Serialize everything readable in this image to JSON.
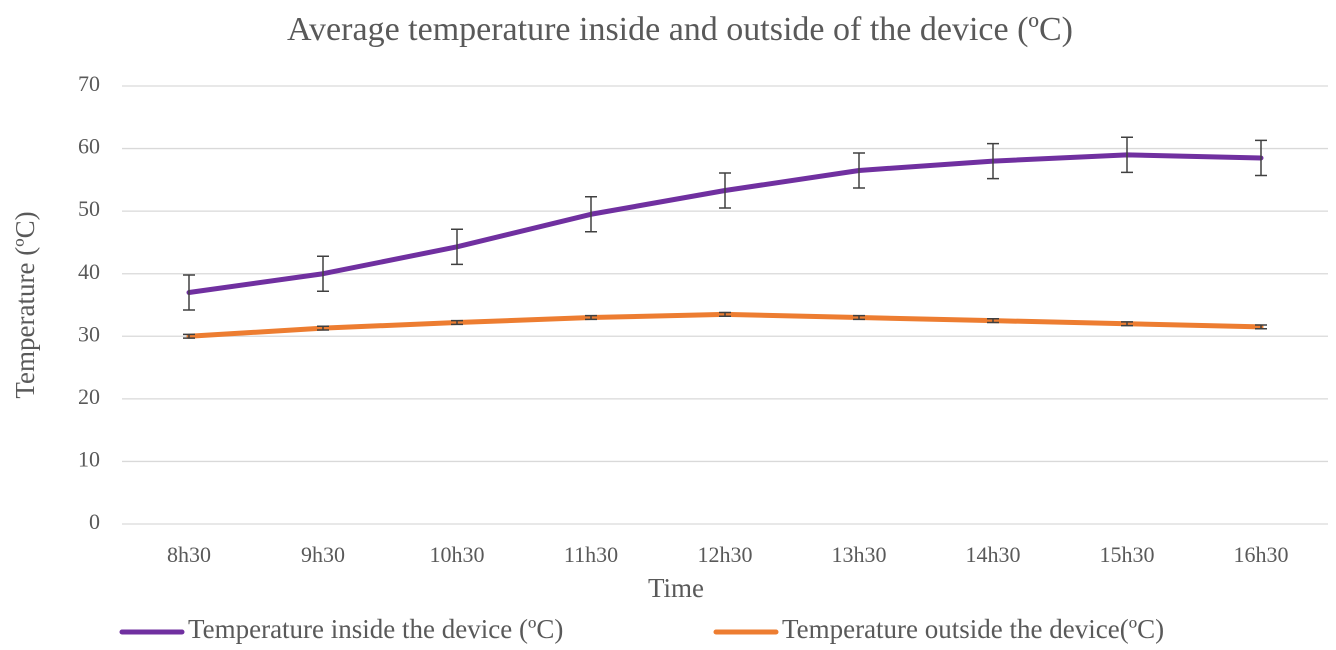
{
  "chart_data": {
    "type": "line",
    "title": "Average temperature inside and outside of the device (ºC)",
    "x_label": "Time",
    "y_label": "Temperature (ºC)",
    "categories": [
      "8h30",
      "9h30",
      "10h30",
      "11h30",
      "12h30",
      "13h30",
      "14h30",
      "15h30",
      "16h30"
    ],
    "series": [
      {
        "name": "Temperature inside the device (ºC)",
        "color": "#7030a0",
        "values": [
          37,
          40,
          44.3,
          49.5,
          53.3,
          56.5,
          58,
          59,
          58.5
        ],
        "errors": [
          2.8,
          2.8,
          2.8,
          2.8,
          2.8,
          2.8,
          2.8,
          2.8,
          2.8
        ]
      },
      {
        "name": "Temperature outside the device(ºC)",
        "color": "#ed7d31",
        "values": [
          30,
          31.3,
          32.2,
          33,
          33.5,
          33,
          32.5,
          32,
          31.5
        ],
        "errors": [
          0.3,
          0.3,
          0.3,
          0.3,
          0.3,
          0.3,
          0.3,
          0.3,
          0.3
        ]
      }
    ],
    "ylim": [
      0,
      70
    ],
    "yticks": [
      0,
      10,
      20,
      30,
      40,
      50,
      60,
      70
    ],
    "grid": true,
    "legend": "bottom"
  }
}
